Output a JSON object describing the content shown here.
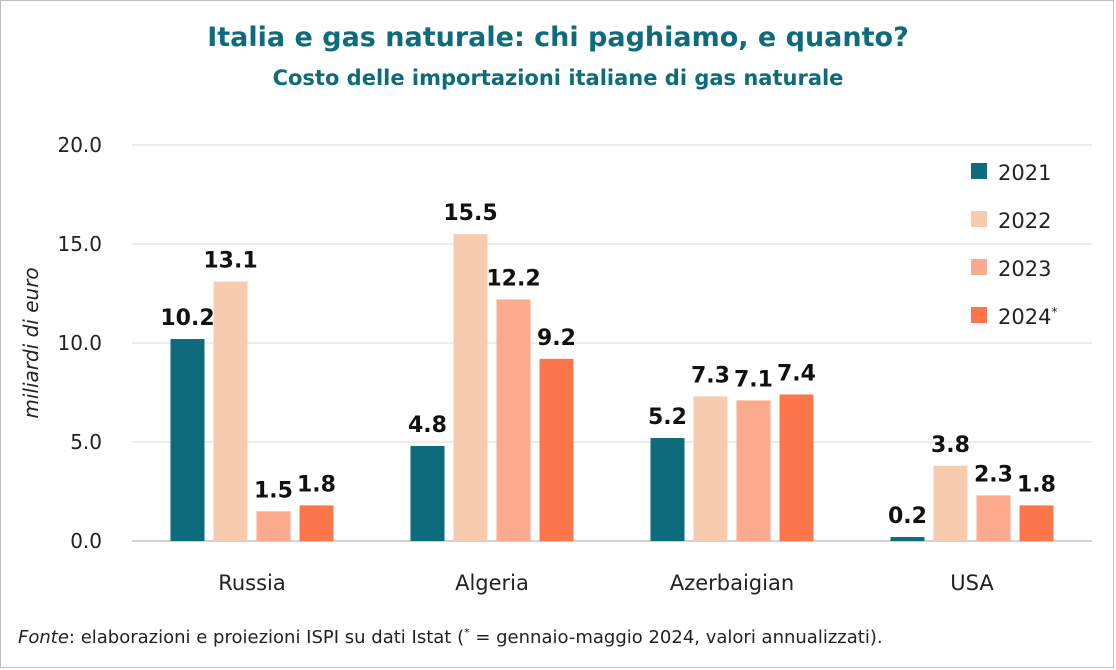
{
  "title": "Italia e gas naturale: chi paghiamo, e quanto?",
  "subtitle": "Costo delle importazioni  italiane di gas naturale",
  "footnote": {
    "source_word": "Fonte",
    "text_before": ": elaborazioni e proiezioni ISPI su dati Istat (",
    "star": "*",
    "text_after": " = gennaio-maggio 2024, valori annualizzati)."
  },
  "chart_data": {
    "type": "bar",
    "title": "Costo delle importazioni  italiane di gas naturale",
    "ylabel": "miliardi di euro",
    "xlabel": "",
    "ylim": [
      0,
      20
    ],
    "yticks": [
      "0.0",
      "5.0",
      "10.0",
      "15.0",
      "20.0"
    ],
    "grid": true,
    "legend_position": "top-right",
    "categories": [
      "Russia",
      "Algeria",
      "Azerbaigian",
      "USA"
    ],
    "series": [
      {
        "name": "2021",
        "color": "#0d6b7c",
        "values": [
          10.2,
          4.8,
          5.2,
          0.2
        ],
        "labels": [
          "10.2",
          "4.8",
          "5.2",
          "0.2"
        ]
      },
      {
        "name": "2022",
        "color": "#f7cbad",
        "values": [
          13.1,
          15.5,
          7.3,
          3.8
        ],
        "labels": [
          "13.1",
          "15.5",
          "7.3",
          "3.8"
        ]
      },
      {
        "name": "2023",
        "color": "#fbaa8d",
        "values": [
          1.5,
          12.2,
          7.1,
          2.3
        ],
        "labels": [
          "1.5",
          "12.2",
          "7.1",
          "2.3"
        ]
      },
      {
        "name": "2024",
        "name_suffix": "*",
        "color": "#fd754a",
        "values": [
          1.8,
          9.2,
          7.4,
          1.8
        ],
        "labels": [
          "1.8",
          "9.2",
          "7.4",
          "1.8"
        ]
      }
    ]
  }
}
